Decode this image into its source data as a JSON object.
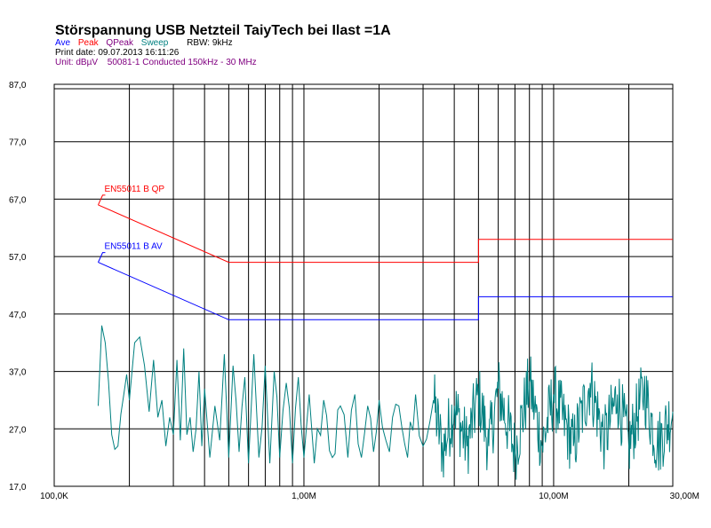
{
  "header": {
    "title": "Störspannung USB Netzteil TaiyTech bei Ilast =1A",
    "legend": [
      {
        "label": "Ave",
        "color": "#0000ff"
      },
      {
        "label": "Peak",
        "color": "#ff0000"
      },
      {
        "label": "QPeak",
        "color": "#800080"
      },
      {
        "label": "Sweep",
        "color": "#008080"
      }
    ],
    "rbw": "RBW: 9kHz",
    "print_date": "Print date: 09.07.2013 16:11:26",
    "unit": "Unit: dBµV",
    "standard": "50081-1 Conducted 150kHz - 30 MHz"
  },
  "chart_data": {
    "type": "line",
    "x_scale": "log",
    "xlim": [
      100000,
      30000000
    ],
    "ylim": [
      17,
      87
    ],
    "x_tick_labels": [
      "100,0K",
      "1,00M",
      "10,00M",
      "30,00M"
    ],
    "x_tick_values": [
      100000,
      1000000,
      10000000,
      30000000
    ],
    "y_tick_labels": [
      "87,0",
      "77,0",
      "67,0",
      "57,0",
      "47,0",
      "37,0",
      "27,0",
      "17,0"
    ],
    "y_tick_values": [
      87,
      77,
      67,
      57,
      47,
      37,
      27,
      17
    ],
    "grid": true,
    "limits": [
      {
        "name": "EN55011 B QP",
        "color": "#ff0000",
        "x": [
          150000,
          500000,
          5000000,
          5000000,
          30000000
        ],
        "y": [
          66,
          56,
          56,
          60,
          60
        ]
      },
      {
        "name": "EN55011 B AV",
        "color": "#0000ff",
        "x": [
          150000,
          500000,
          5000000,
          5000000,
          30000000
        ],
        "y": [
          56,
          46,
          46,
          50,
          50
        ]
      }
    ],
    "series": [
      {
        "color": "#008080",
        "x": [
          150000,
          155000,
          160000,
          170000,
          180000,
          190000,
          200000,
          210000,
          220000,
          230000,
          240000,
          250000,
          260000,
          270000,
          280000,
          290000,
          300000,
          310000,
          320000,
          330000,
          340000,
          350000,
          360000,
          370000,
          380000,
          390000,
          400000,
          420000,
          440000,
          460000,
          480000,
          500000,
          520000,
          550000,
          580000,
          600000,
          630000,
          660000,
          700000,
          730000,
          760000,
          800000,
          850000,
          900000,
          950000,
          1000000,
          1050000,
          1100000,
          1200000,
          1300000,
          1400000,
          1500000,
          1600000,
          1700000,
          1800000,
          1900000,
          2000000,
          2200000,
          2400000,
          2600000,
          2800000,
          3000000,
          3300000,
          3600000,
          4000000,
          4500000,
          5000000,
          5500000,
          6000000,
          7000000,
          8000000,
          9000000,
          10000000,
          12000000,
          14000000,
          16000000,
          18000000,
          20000000,
          23000000,
          26000000,
          30000000
        ],
        "y": [
          31,
          45,
          42,
          26,
          24,
          33,
          32,
          42,
          43,
          38,
          30,
          39,
          29,
          32,
          24,
          29,
          26,
          39,
          25,
          41,
          26,
          29,
          23,
          27,
          37,
          24,
          34,
          22,
          31,
          25,
          40,
          22,
          38,
          23,
          36,
          21,
          40,
          22,
          38,
          21,
          37,
          22,
          35,
          21,
          36,
          22,
          33,
          21,
          32,
          22,
          31,
          22,
          33,
          22,
          31,
          23,
          32,
          23,
          31,
          22,
          33,
          24,
          32,
          23,
          31,
          24,
          33,
          24,
          34,
          23,
          35,
          24,
          33,
          24,
          35,
          25,
          33,
          24,
          34,
          24,
          30
        ]
      }
    ]
  }
}
